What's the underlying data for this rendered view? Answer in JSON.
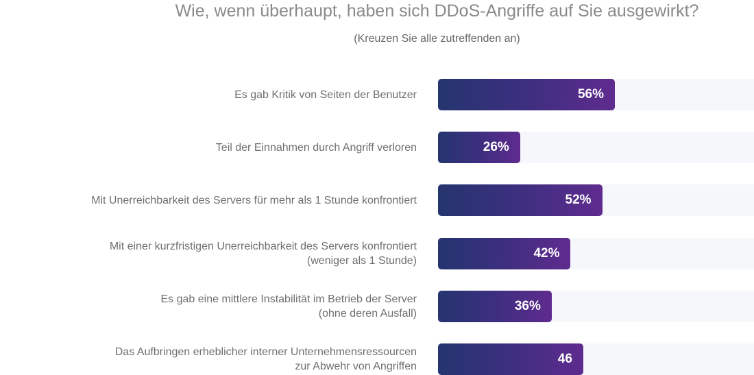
{
  "chart_data": {
    "type": "bar",
    "orientation": "horizontal",
    "title": "Wie, wenn überhaupt, haben sich DDoS-Angriffe auf Sie ausgewirkt?",
    "subtitle": "(Kreuzen Sie alle zutreffenden an)",
    "xlim": [
      0,
      100
    ],
    "grid": false,
    "colors": {
      "bar_start": "#25356f",
      "bar_end": "#5f2b8e",
      "track": "#f6f7fa"
    },
    "categories": [
      [
        "Es gab Kritik von Seiten der Benutzer"
      ],
      [
        "Teil der Einnahmen durch Angriff verloren"
      ],
      [
        "Mit Unerreichbarkeit des Servers für mehr als 1 Stunde konfrontiert"
      ],
      [
        "Mit einer kurzfristigen Unerreichbarkeit des Servers konfrontiert",
        "(weniger als 1 Stunde)"
      ],
      [
        "Es gab eine mittlere Instabilität im Betrieb der Server",
        "(ohne deren Ausfall)"
      ],
      [
        "Das Aufbringen erheblicher interner Unternehmensressourcen",
        "zur Abwehr von Angriffen"
      ]
    ],
    "values": [
      56,
      26,
      52,
      42,
      36,
      46
    ],
    "value_labels": [
      "56%",
      "26%",
      "52%",
      "42%",
      "36%",
      "46"
    ]
  }
}
